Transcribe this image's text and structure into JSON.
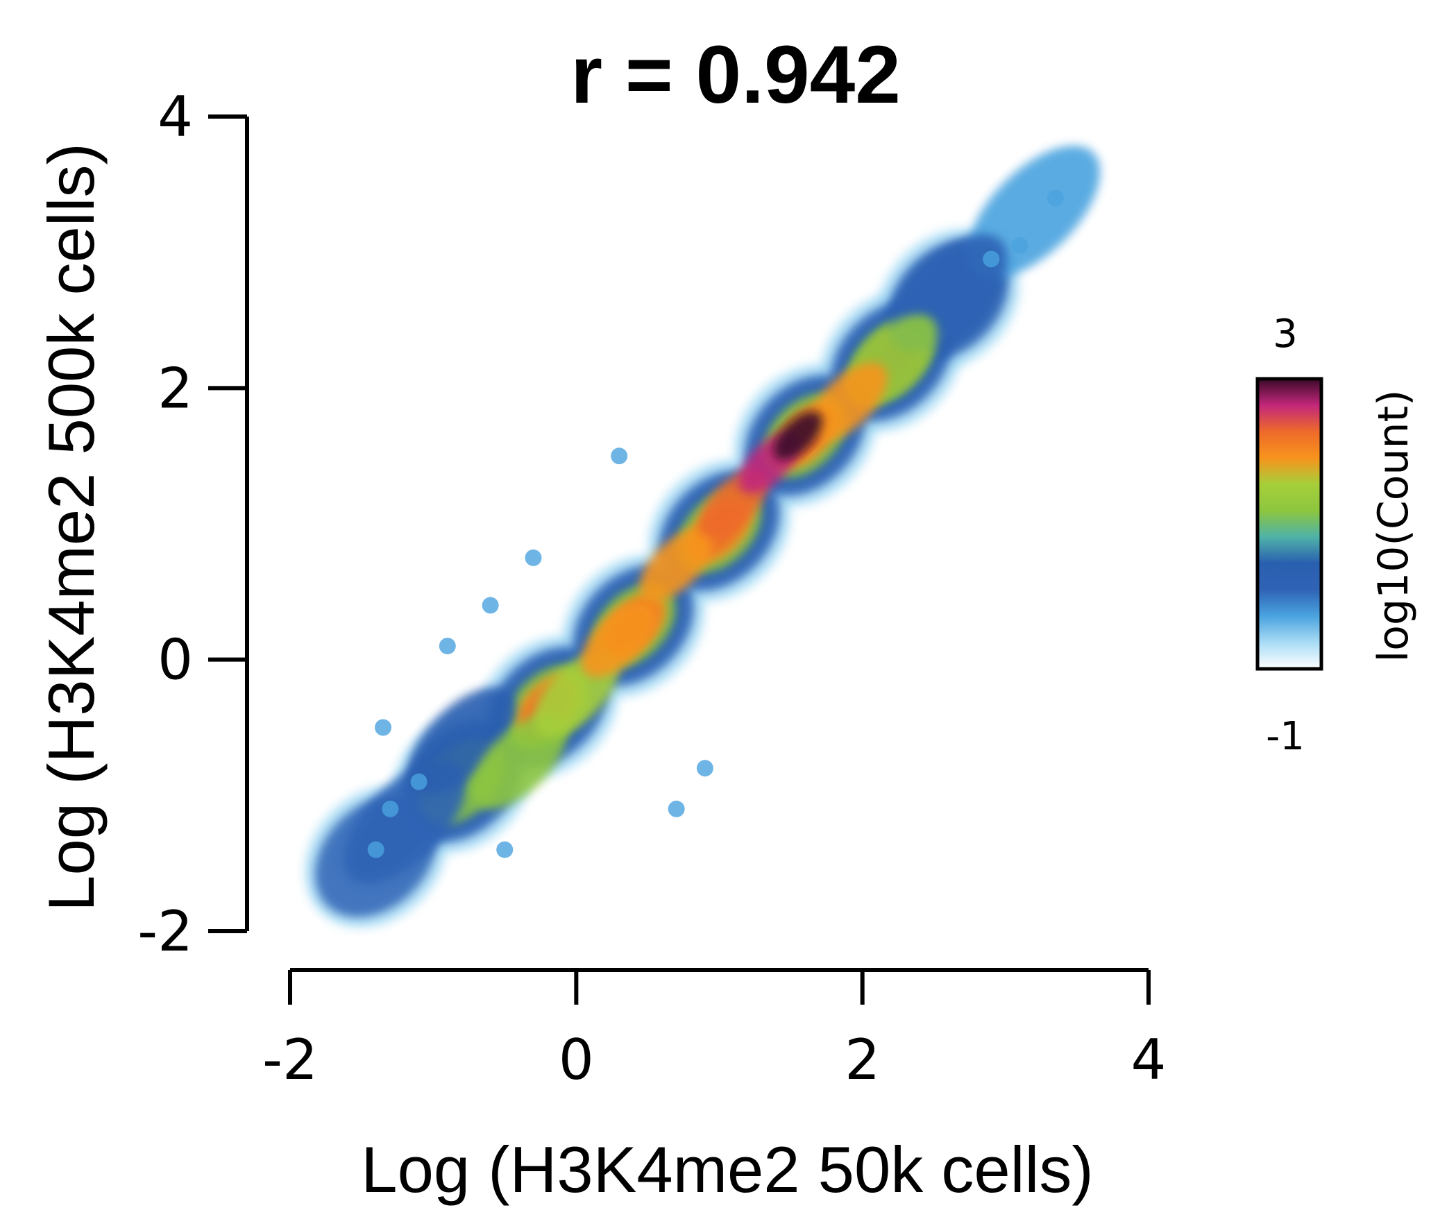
{
  "chart_data": {
    "type": "heatmap",
    "title": "r = 0.942",
    "xlabel": "Log (H3K4me2 50k cells)",
    "ylabel": "Log (H3K4me2 500k cells)",
    "xlim": [
      -2,
      4
    ],
    "ylim": [
      -2,
      4
    ],
    "x_ticks": [
      "-2",
      "0",
      "2",
      "4"
    ],
    "y_ticks": [
      "4",
      "2",
      "0",
      "-2"
    ],
    "x_tick_values": [
      -2,
      0,
      2,
      4
    ],
    "y_tick_values": [
      4,
      2,
      0,
      -2
    ],
    "colorbar": {
      "label": "log10(Count)",
      "min_label": "-1",
      "max_label": "3",
      "min": -1,
      "max": 3,
      "colors": [
        "#ffffff",
        "#a9dcf5",
        "#4aa3df",
        "#2f63b5",
        "#2a5fb0",
        "#4fb3a8",
        "#8dc63f",
        "#a6cf3a",
        "#f7941d",
        "#ee6a2a",
        "#c2277a",
        "#3b0a2a"
      ]
    },
    "density": [
      {
        "x": 1.55,
        "y": 1.65,
        "v": 3.0
      },
      {
        "x": 1.35,
        "y": 1.45,
        "v": 2.5
      },
      {
        "x": 1.1,
        "y": 1.15,
        "v": 2.2
      },
      {
        "x": 0.7,
        "y": 0.7,
        "v": 2.0
      },
      {
        "x": 0.3,
        "y": 0.15,
        "v": 1.9
      },
      {
        "x": 1.9,
        "y": 1.9,
        "v": 1.8
      },
      {
        "x": 0.0,
        "y": -0.25,
        "v": 1.5
      },
      {
        "x": 2.2,
        "y": 2.2,
        "v": 1.2
      },
      {
        "x": -0.4,
        "y": -0.75,
        "v": 1.1
      },
      {
        "x": -0.8,
        "y": -0.6,
        "v": 0.6
      },
      {
        "x": 2.6,
        "y": 2.7,
        "v": 0.2
      },
      {
        "x": -1.2,
        "y": -1.2,
        "v": 0.0
      },
      {
        "x": 3.2,
        "y": 3.3,
        "v": -0.4
      }
    ]
  }
}
